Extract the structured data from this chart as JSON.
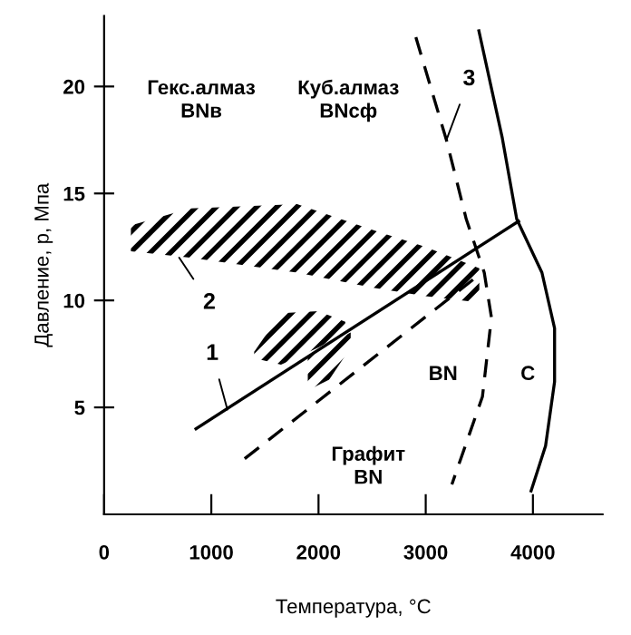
{
  "chart_data": {
    "type": "line",
    "xlabel": "Температура, °C",
    "ylabel": "Давление, p, Мпа",
    "xlim": [
      0,
      4650
    ],
    "ylim": [
      0,
      23.3
    ],
    "xticks": [
      0,
      1000,
      2000,
      3000,
      4000
    ],
    "yticks": [
      5,
      10,
      15,
      20
    ],
    "grid": false,
    "legend": false,
    "series": [
      {
        "color": "#000000",
        "line_style": "solid",
        "x": [
          857,
          3866
        ],
        "values": [
          4.0,
          13.7
        ]
      },
      {
        "color": "#000000",
        "line_style": "dashed",
        "x": [
          1311,
          3500
        ],
        "values": [
          2.6,
          11.2
        ]
      },
      {
        "color": "#000000",
        "line_style": "dashed",
        "x": [
          2908,
          3193,
          3378,
          3546,
          3613,
          3529,
          3244
        ],
        "values": [
          22.3,
          17.5,
          13.8,
          11.3,
          9.2,
          5.5,
          1.4
        ]
      },
      {
        "color": "#000000",
        "line_style": "solid",
        "x": [
          3496,
          3714,
          3849,
          4084,
          4202,
          4202,
          4118,
          3983
        ],
        "values": [
          22.6,
          17.6,
          13.8,
          11.3,
          8.7,
          6.2,
          3.2,
          1.1
        ]
      },
      {
        "type": "area",
        "color": "#000000",
        "x": [
          250,
          800,
          1800,
          2500,
          3000,
          3500,
          3500,
          3000,
          2500,
          1800,
          800,
          250
        ],
        "values": [
          13.5,
          14.3,
          14.5,
          13.3,
          12.5,
          11.5,
          9.9,
          10.2,
          10.6,
          11.3,
          12.0,
          12.3
        ]
      },
      {
        "type": "area",
        "color": "#000000",
        "x": [
          1400,
          1650,
          2000,
          2250,
          2250,
          2000,
          1650,
          1400
        ],
        "values": [
          7.6,
          9.4,
          9.5,
          9.0,
          8.5,
          7.8,
          7.0,
          7.3
        ]
      },
      {
        "type": "area",
        "color": "#000000",
        "x": [
          1900,
          2100,
          2300,
          2300,
          2100,
          1900
        ],
        "values": [
          7.3,
          8.0,
          8.5,
          7.8,
          6.3,
          5.8
        ]
      }
    ],
    "annotations": [
      "Гекс.алмаз\nBNв",
      "Куб.алмаз\nBNсф",
      "BN",
      "C",
      "Графит\nBN",
      {
        "text": "1",
        "x": 1150,
        "y": 4.9
      },
      {
        "text": "2",
        "x": 700,
        "y": 12.0
      },
      {
        "text": "3",
        "x": 3193,
        "y": 17.5
      }
    ]
  }
}
